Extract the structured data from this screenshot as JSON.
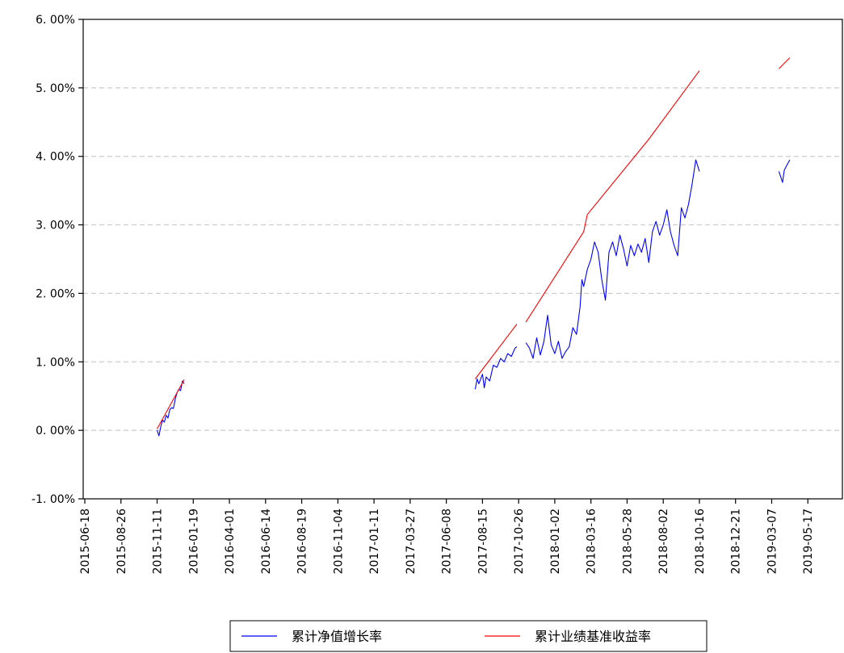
{
  "chart_data": {
    "type": "line",
    "title": "",
    "xlabel": "",
    "ylabel": "",
    "y_tick_labels": [
      "-1. 00%",
      "0. 00%",
      "1. 00%",
      "2. 00%",
      "3. 00%",
      "4. 00%",
      "5. 00%",
      "6. 00%"
    ],
    "y_tick_values": [
      -1,
      0,
      1,
      2,
      3,
      4,
      5,
      6
    ],
    "ylim": [
      -1,
      6
    ],
    "x_tick_labels": [
      "2015-06-18",
      "2015-08-26",
      "2015-11-11",
      "2016-01-19",
      "2016-04-01",
      "2016-06-14",
      "2016-08-19",
      "2016-11-04",
      "2017-01-11",
      "2017-03-27",
      "2017-06-08",
      "2017-08-15",
      "2017-10-26",
      "2018-01-02",
      "2018-03-16",
      "2018-05-28",
      "2018-08-02",
      "2018-10-16",
      "2018-12-21",
      "2019-03-07",
      "2019-05-17"
    ],
    "grid": "horizontal dashed",
    "legend_position": "bottom",
    "series": [
      {
        "name": "累计净值增长率",
        "color": "#0000ff",
        "segments": [
          {
            "x": [
              2.0,
              2.05,
              2.1,
              2.15,
              2.2,
              2.25,
              2.3,
              2.35,
              2.4,
              2.45,
              2.5,
              2.55,
              2.6,
              2.65,
              2.7,
              2.75
            ],
            "y": [
              0.0,
              -0.08,
              0.05,
              0.15,
              0.12,
              0.22,
              0.18,
              0.3,
              0.33,
              0.32,
              0.45,
              0.55,
              0.6,
              0.58,
              0.72,
              0.68
            ]
          },
          {
            "x": [
              10.8,
              10.85,
              10.9,
              11.0,
              11.05,
              11.1,
              11.2,
              11.3,
              11.4,
              11.5,
              11.6,
              11.7,
              11.8,
              11.9,
              11.95
            ],
            "y": [
              0.6,
              0.75,
              0.68,
              0.82,
              0.62,
              0.78,
              0.72,
              0.95,
              0.92,
              1.05,
              1.0,
              1.12,
              1.08,
              1.2,
              1.22
            ]
          },
          {
            "x": [
              12.2,
              12.3,
              12.4,
              12.5,
              12.6,
              12.7,
              12.8,
              12.9,
              13.0,
              13.1,
              13.2,
              13.3,
              13.4,
              13.5,
              13.6,
              13.7,
              13.75,
              13.8,
              13.9,
              14.0,
              14.1,
              14.2,
              14.3,
              14.4,
              14.5,
              14.6,
              14.7,
              14.8,
              14.9,
              15.0,
              15.1,
              15.2,
              15.3,
              15.4,
              15.5,
              15.6,
              15.7,
              15.8,
              15.9,
              16.0,
              16.1,
              16.2,
              16.3,
              16.4,
              16.5,
              16.6,
              16.7,
              16.8,
              16.9,
              17.0
            ],
            "y": [
              1.28,
              1.2,
              1.05,
              1.35,
              1.1,
              1.3,
              1.68,
              1.25,
              1.12,
              1.3,
              1.05,
              1.15,
              1.22,
              1.5,
              1.4,
              1.8,
              2.2,
              2.1,
              2.35,
              2.5,
              2.75,
              2.6,
              2.2,
              1.9,
              2.6,
              2.75,
              2.55,
              2.85,
              2.65,
              2.4,
              2.7,
              2.55,
              2.72,
              2.6,
              2.8,
              2.45,
              2.9,
              3.05,
              2.85,
              3.0,
              3.22,
              2.9,
              2.7,
              2.55,
              3.25,
              3.1,
              3.3,
              3.6,
              3.95,
              3.78
            ]
          },
          {
            "x": [
              19.2,
              19.25,
              19.3,
              19.35,
              19.4,
              19.45,
              19.5
            ],
            "y": [
              3.78,
              3.7,
              3.62,
              3.8,
              3.85,
              3.9,
              3.95
            ]
          }
        ]
      },
      {
        "name": "累计业绩基准收益率",
        "color": "#ff0000",
        "segments": [
          {
            "x": [
              2.0,
              2.75
            ],
            "y": [
              0.02,
              0.74
            ]
          },
          {
            "x": [
              10.8,
              11.95
            ],
            "y": [
              0.75,
              1.55
            ]
          },
          {
            "x": [
              12.2,
              13.8,
              13.9,
              15.6,
              17.0
            ],
            "y": [
              1.58,
              2.9,
              3.15,
              4.25,
              5.25
            ]
          },
          {
            "x": [
              19.2,
              19.5
            ],
            "y": [
              5.28,
              5.44
            ]
          }
        ]
      }
    ]
  }
}
